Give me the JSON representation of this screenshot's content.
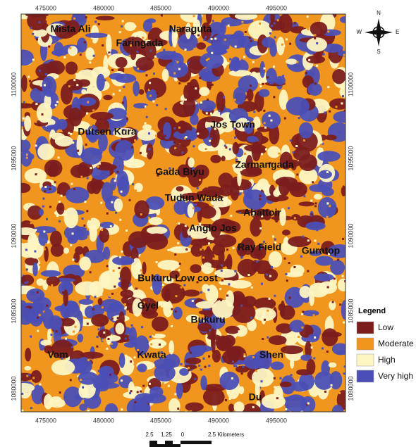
{
  "map": {
    "x_ticks": [
      "475000",
      "480000",
      "485000",
      "490000",
      "495000"
    ],
    "y_ticks": [
      "1100000",
      "1095000",
      "1090000",
      "1085000",
      "1080000"
    ],
    "places": [
      "Mista Ali",
      "Faringada",
      "Naraguta",
      "Dutsen Kura",
      "Jos Town",
      "Zarmangada",
      "Gada Biyu",
      "Tudun Wada",
      "Abattoir",
      "Anglo Jos",
      "Ray Field",
      "Guratop",
      "Bukuru Low cost",
      "Gyel",
      "Bukuru",
      "Vom",
      "Kwata",
      "Shen",
      "Du"
    ],
    "compass": {
      "n": "N",
      "s": "S",
      "e": "E",
      "w": "W"
    },
    "legend": {
      "title": "Legend",
      "items": [
        {
          "label": "Low",
          "color": "#7b1d1d"
        },
        {
          "label": "Moderate",
          "color": "#f0961e"
        },
        {
          "label": "High",
          "color": "#fdf6c3"
        },
        {
          "label": "Very high",
          "color": "#4b4fb5"
        }
      ]
    },
    "scale": {
      "labels": [
        "2.5",
        "1.25",
        "0",
        "2.5 Kilometers"
      ]
    }
  }
}
